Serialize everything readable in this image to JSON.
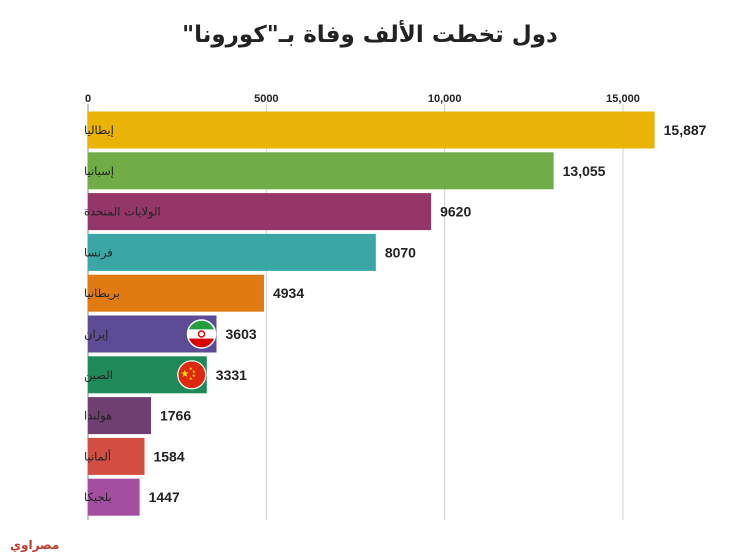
{
  "chart_data": {
    "type": "bar",
    "orientation": "horizontal",
    "title": "دول تخطت الألف وفاة بـ\"كورونا\"",
    "xlim": [
      0,
      16000
    ],
    "x_ticks": [
      "0",
      "5000",
      "10,000",
      "15,000"
    ],
    "x_tick_values": [
      0,
      5000,
      10000,
      15000
    ],
    "grid": true,
    "categories": [
      "إيطاليا",
      "إسبانيا",
      "الولايات المتحدة",
      "فرنسا",
      "بريطانيا",
      "إيران",
      "الصين",
      "هولندا",
      "ألمانيا",
      "بلجيكا"
    ],
    "values": [
      15887,
      13055,
      9620,
      8070,
      4934,
      3603,
      3331,
      1766,
      1584,
      1447
    ],
    "value_labels": [
      "15,887",
      "13,055",
      "9620",
      "8070",
      "4934",
      "3603",
      "3331",
      "1766",
      "1584",
      "1447"
    ],
    "colors": [
      "#eab308",
      "#70ad47",
      "#953668",
      "#3ba6a6",
      "#e07b12",
      "#5c4b95",
      "#1e8a5a",
      "#6f3f72",
      "#d24e43",
      "#a44ea2"
    ],
    "flags": [
      null,
      null,
      null,
      null,
      null,
      "iran-flag-icon",
      "china-flag-icon",
      null,
      null,
      null
    ]
  },
  "source_label": "مصراوي"
}
